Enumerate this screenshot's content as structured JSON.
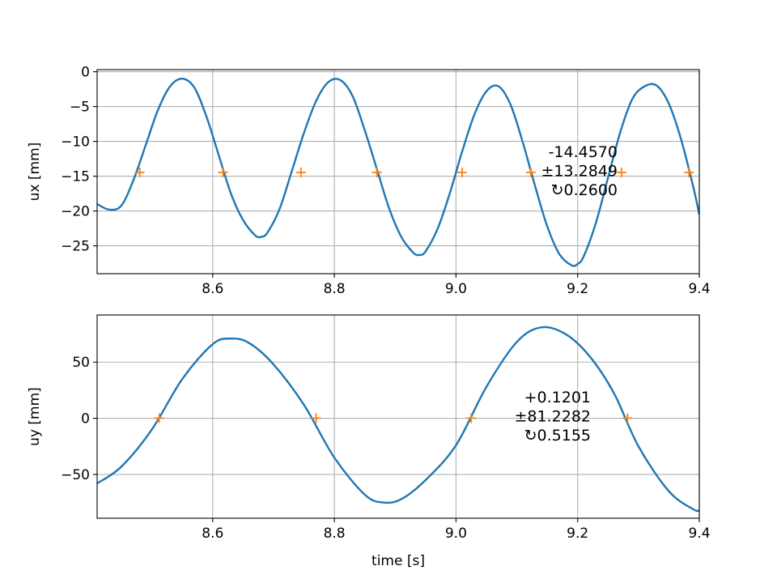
{
  "chart_data": [
    {
      "type": "line",
      "id": "top",
      "xlabel": "",
      "ylabel": "ux [mm]",
      "xlim": [
        8.41,
        9.4
      ],
      "ylim": [
        -29,
        0.3
      ],
      "xticks": [
        8.6,
        8.8,
        9.0,
        9.2,
        9.4
      ],
      "xticklabels": [
        "8.6",
        "8.8",
        "9.0",
        "9.2",
        "9.4"
      ],
      "yticks": [
        0,
        -5,
        -10,
        -15,
        -20,
        -25
      ],
      "yticklabels": [
        "0",
        "−5",
        "−10",
        "−15",
        "−20",
        "−25"
      ],
      "grid": true,
      "series": [
        {
          "color": "#1f77b4",
          "x": [
            8.41,
            8.43,
            8.45,
            8.47,
            8.49,
            8.51,
            8.53,
            8.55,
            8.57,
            8.59,
            8.61,
            8.63,
            8.65,
            8.67,
            8.68,
            8.69,
            8.71,
            8.73,
            8.75,
            8.77,
            8.79,
            8.81,
            8.83,
            8.85,
            8.87,
            8.89,
            8.91,
            8.93,
            8.94,
            8.95,
            8.97,
            8.99,
            9.01,
            9.03,
            9.05,
            9.07,
            9.09,
            9.11,
            9.13,
            9.15,
            9.17,
            9.19,
            9.2,
            9.21,
            9.23,
            9.25,
            9.27,
            9.29,
            9.31,
            9.33,
            9.35,
            9.37,
            9.39,
            9.4
          ],
          "y": [
            -19.0,
            -19.8,
            -19.2,
            -15.5,
            -10.5,
            -5.5,
            -2.1,
            -1.0,
            -2.3,
            -6.5,
            -12.0,
            -17.5,
            -21.3,
            -23.5,
            -23.7,
            -23.1,
            -19.7,
            -14.3,
            -8.8,
            -4.2,
            -1.5,
            -1.2,
            -3.5,
            -8.4,
            -14.0,
            -19.6,
            -23.7,
            -26.0,
            -26.3,
            -25.8,
            -22.5,
            -17.4,
            -11.5,
            -6.2,
            -2.8,
            -2.1,
            -4.8,
            -10.2,
            -16.4,
            -22.2,
            -26.2,
            -27.8,
            -27.6,
            -26.5,
            -21.7,
            -15.2,
            -8.7,
            -3.9,
            -2.1,
            -2.0,
            -4.6,
            -9.7,
            -16.5,
            -20.5
          ]
        }
      ],
      "crossings": {
        "color": "#ff7f0e",
        "x": [
          8.48,
          8.617,
          8.745,
          8.87,
          9.01,
          9.123,
          9.272,
          9.383
        ],
        "y": -14.457
      },
      "annotation": [
        "-14.4570",
        "±13.2849",
        "↻0.2600"
      ]
    },
    {
      "type": "line",
      "id": "bottom",
      "xlabel": "time [s]",
      "ylabel": "uy [mm]",
      "xlim": [
        8.41,
        9.4
      ],
      "ylim": [
        -89,
        92
      ],
      "xticks": [
        8.6,
        8.8,
        9.0,
        9.2,
        9.4
      ],
      "xticklabels": [
        "8.6",
        "8.8",
        "9.0",
        "9.2",
        "9.4"
      ],
      "yticks": [
        50,
        0,
        -50
      ],
      "yticklabels": [
        "50",
        "0",
        "−50"
      ],
      "grid": true,
      "series": [
        {
          "color": "#1f77b4",
          "x": [
            8.41,
            8.45,
            8.5,
            8.55,
            8.6,
            8.63,
            8.66,
            8.7,
            8.75,
            8.8,
            8.85,
            8.88,
            8.91,
            8.95,
            9.0,
            9.05,
            9.1,
            9.14,
            9.18,
            9.22,
            9.26,
            9.3,
            9.35,
            9.39,
            9.4
          ],
          "y": [
            -58,
            -43,
            -10,
            35,
            66,
            71,
            67,
            48,
            12,
            -35,
            -68,
            -75,
            -72,
            -55,
            -24,
            28,
            68,
            81,
            75,
            55,
            22,
            -25,
            -65,
            -81,
            -82
          ]
        }
      ],
      "crossings": {
        "color": "#ff7f0e",
        "x": [
          8.512,
          8.77,
          9.025,
          9.282
        ],
        "y": 0.1201
      },
      "annotation": [
        "+0.1201",
        "±81.2282",
        "↻0.5155"
      ]
    }
  ]
}
